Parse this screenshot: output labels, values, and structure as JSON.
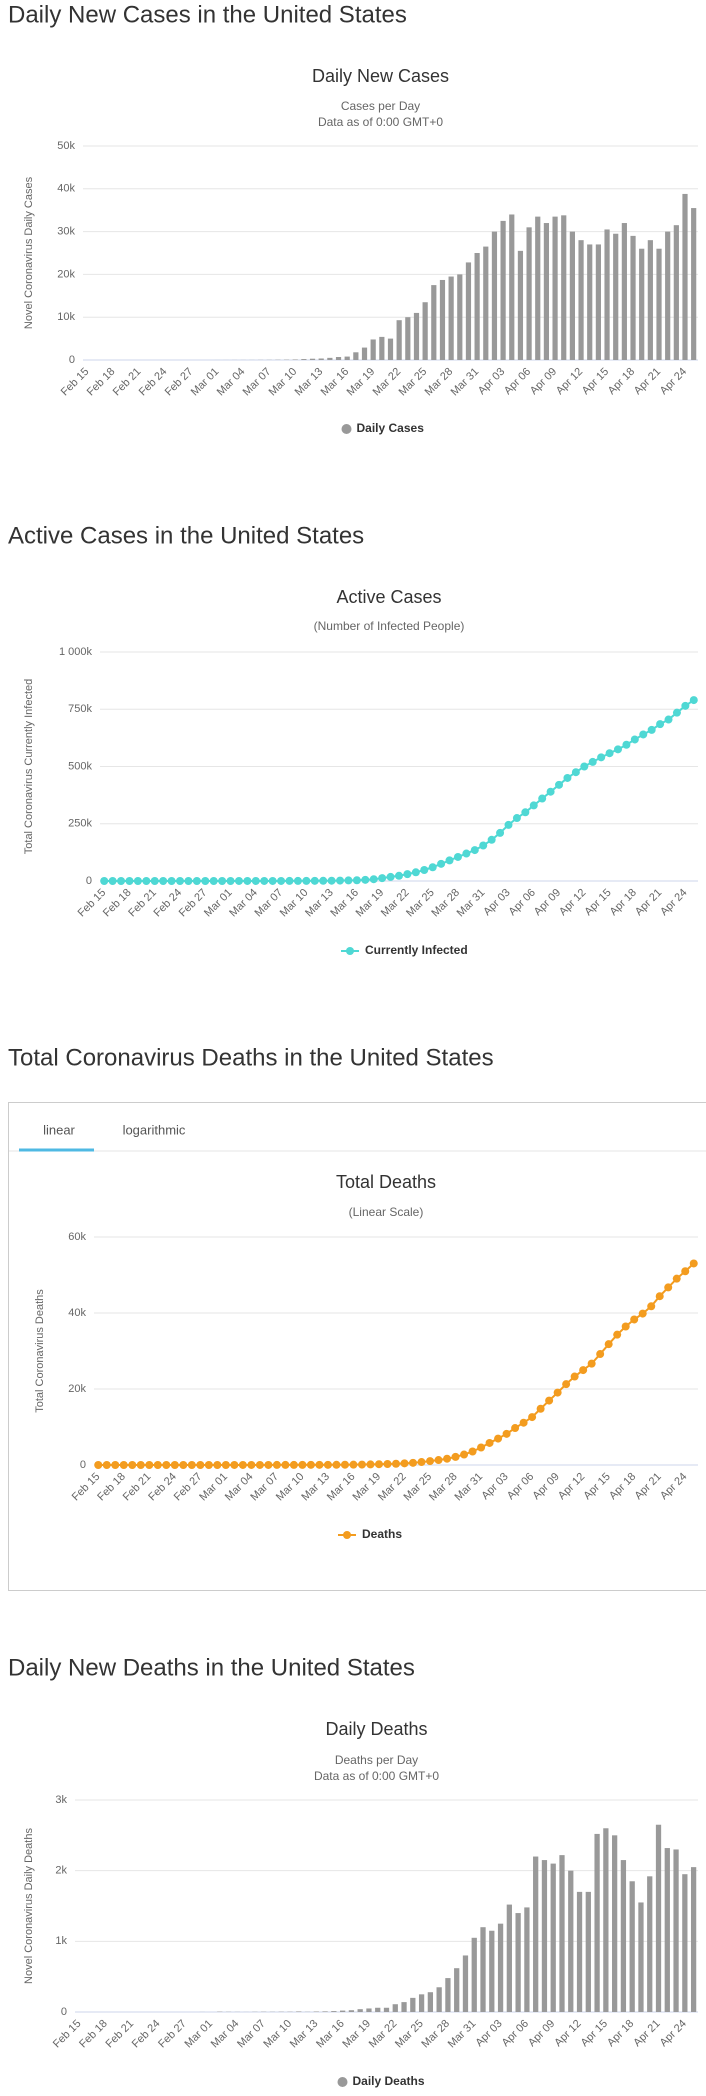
{
  "headings": [
    "Daily New Cases in the United States",
    "Active Cases in the United States",
    "Total Coronavirus Deaths in the United States",
    "Daily New Deaths in the United States"
  ],
  "tabs": [
    "linear",
    "logarithmic"
  ],
  "chart_data": [
    {
      "type": "bar",
      "title": "Daily New Cases",
      "subtitle": [
        "Cases per Day",
        "Data as of 0:00 GMT+0"
      ],
      "y_label": "Novel Coronavirus Daily Cases",
      "categories": [
        "Feb 15",
        null,
        null,
        "Feb 18",
        null,
        null,
        "Feb 21",
        null,
        null,
        "Feb 24",
        null,
        null,
        "Feb 27",
        null,
        null,
        "Mar 01",
        null,
        null,
        "Mar 04",
        null,
        null,
        "Mar 07",
        null,
        null,
        "Mar 10",
        null,
        null,
        "Mar 13",
        null,
        null,
        "Mar 16",
        null,
        null,
        "Mar 19",
        null,
        null,
        "Mar 22",
        null,
        null,
        "Mar 25",
        null,
        null,
        "Mar 28",
        null,
        null,
        "Mar 31",
        null,
        null,
        "Apr 03",
        null,
        null,
        "Apr 06",
        null,
        null,
        "Apr 09",
        null,
        null,
        "Apr 12",
        null,
        null,
        "Apr 15",
        null,
        null,
        "Apr 18",
        null,
        null,
        "Apr 21",
        null,
        null,
        "Apr 24",
        null
      ],
      "series": [
        {
          "name": "Daily Cases",
          "color": "#999999",
          "values": [
            0,
            0,
            0,
            1,
            0,
            0,
            0,
            0,
            0,
            0,
            0,
            0,
            0,
            0,
            0,
            5,
            10,
            15,
            18,
            20,
            30,
            40,
            60,
            80,
            120,
            220,
            300,
            350,
            500,
            700,
            800,
            1800,
            2900,
            4800,
            5400,
            5000,
            9300,
            10000,
            11000,
            13500,
            17500,
            18700,
            19500,
            20000,
            22800,
            25000,
            26500,
            30000,
            32500,
            34000,
            25500,
            31000,
            33500,
            32000,
            33500,
            33800,
            30000,
            28000,
            27000,
            27000,
            30500,
            29500,
            32000,
            29000,
            26000,
            28000,
            26000,
            30000,
            31500,
            38800,
            35500
          ]
        }
      ],
      "ylim": [
        0,
        50000
      ],
      "yticks": [
        0,
        {
          "value": 10000,
          "label": "10k"
        },
        {
          "value": 20000,
          "label": "20k"
        },
        {
          "value": 30000,
          "label": "30k"
        },
        {
          "value": 40000,
          "label": "40k"
        },
        {
          "value": 50000,
          "label": "50k"
        }
      ],
      "grid": true,
      "legend": "bottom"
    },
    {
      "type": "line",
      "title": "Active Cases",
      "subtitle": [
        "(Number of Infected People)"
      ],
      "y_label": "Total Coronavirus Currently Infected",
      "categories": [
        "Feb 15",
        null,
        null,
        "Feb 18",
        null,
        null,
        "Feb 21",
        null,
        null,
        "Feb 24",
        null,
        null,
        "Feb 27",
        null,
        null,
        "Mar 01",
        null,
        null,
        "Mar 04",
        null,
        null,
        "Mar 07",
        null,
        null,
        "Mar 10",
        null,
        null,
        "Mar 13",
        null,
        null,
        "Mar 16",
        null,
        null,
        "Mar 19",
        null,
        null,
        "Mar 22",
        null,
        null,
        "Mar 25",
        null,
        null,
        "Mar 28",
        null,
        null,
        "Mar 31",
        null,
        null,
        "Apr 03",
        null,
        null,
        "Apr 06",
        null,
        null,
        "Apr 09",
        null,
        null,
        "Apr 12",
        null,
        null,
        "Apr 15",
        null,
        null,
        "Apr 18",
        null,
        null,
        "Apr 21",
        null,
        null,
        "Apr 24",
        null
      ],
      "series": [
        {
          "name": "Currently Infected",
          "color": "#4fd8d4",
          "values": [
            12,
            12,
            12,
            12,
            12,
            12,
            13,
            13,
            13,
            13,
            13,
            13,
            13,
            20,
            40,
            55,
            70,
            90,
            110,
            140,
            180,
            230,
            300,
            400,
            520,
            700,
            950,
            1300,
            1800,
            2500,
            3300,
            5000,
            7800,
            12500,
            17800,
            22800,
            30000,
            38000,
            48000,
            60000,
            75000,
            90000,
            105000,
            120000,
            135000,
            155000,
            180000,
            210000,
            245000,
            275000,
            300000,
            330000,
            360000,
            390000,
            420000,
            450000,
            475000,
            500000,
            520000,
            540000,
            558000,
            575000,
            595000,
            618000,
            640000,
            660000,
            685000,
            705000,
            735000,
            765000,
            790000
          ]
        }
      ],
      "ylim": [
        0,
        1000000
      ],
      "yticks": [
        0,
        {
          "value": 250000,
          "label": "250k"
        },
        {
          "value": 500000,
          "label": "500k"
        },
        {
          "value": 750000,
          "label": "750k"
        },
        {
          "value": 1000000,
          "label": "1 000k"
        }
      ],
      "grid": true,
      "legend": "bottom"
    },
    {
      "type": "line",
      "title": "Total Deaths",
      "subtitle": [
        "(Linear Scale)"
      ],
      "y_label": "Total Coronavirus Deaths",
      "categories": [
        "Feb 15",
        null,
        null,
        "Feb 18",
        null,
        null,
        "Feb 21",
        null,
        null,
        "Feb 24",
        null,
        null,
        "Feb 27",
        null,
        null,
        "Mar 01",
        null,
        null,
        "Mar 04",
        null,
        null,
        "Mar 07",
        null,
        null,
        "Mar 10",
        null,
        null,
        "Mar 13",
        null,
        null,
        "Mar 16",
        null,
        null,
        "Mar 19",
        null,
        null,
        "Mar 22",
        null,
        null,
        "Mar 25",
        null,
        null,
        "Mar 28",
        null,
        null,
        "Mar 31",
        null,
        null,
        "Apr 03",
        null,
        null,
        "Apr 06",
        null,
        null,
        "Apr 09",
        null,
        null,
        "Apr 12",
        null,
        null,
        "Apr 15",
        null,
        null,
        "Apr 18",
        null,
        null,
        "Apr 21",
        null,
        null,
        "Apr 24",
        null
      ],
      "series": [
        {
          "name": "Deaths",
          "color": "#f39c1f",
          "values": [
            0,
            0,
            0,
            0,
            0,
            0,
            0,
            0,
            0,
            0,
            0,
            0,
            0,
            0,
            1,
            1,
            6,
            9,
            11,
            12,
            15,
            19,
            22,
            26,
            30,
            38,
            41,
            48,
            57,
            70,
            90,
            115,
            155,
            205,
            265,
            325,
            435,
            575,
            775,
            1025,
            1305,
            1655,
            2135,
            2755,
            3555,
            4605,
            5805,
            6955,
            8205,
            9725,
            11125,
            12605,
            14805,
            16955,
            19055,
            21275,
            23275,
            24975,
            26675,
            29195,
            31795,
            34295,
            36445,
            38295,
            39845,
            41765,
            44415,
            46735,
            49035,
            50985,
            53035
          ]
        }
      ],
      "ylim": [
        0,
        60000
      ],
      "yticks": [
        0,
        {
          "value": 20000,
          "label": "20k"
        },
        {
          "value": 40000,
          "label": "40k"
        },
        {
          "value": 60000,
          "label": "60k"
        }
      ],
      "grid": true,
      "legend": "bottom"
    },
    {
      "type": "bar",
      "title": "Daily Deaths",
      "subtitle": [
        "Deaths per Day",
        "Data as of 0:00 GMT+0"
      ],
      "y_label": "Novel Coronavirus Daily Deaths",
      "categories": [
        "Feb 15",
        null,
        null,
        "Feb 18",
        null,
        null,
        "Feb 21",
        null,
        null,
        "Feb 24",
        null,
        null,
        "Feb 27",
        null,
        null,
        "Mar 01",
        null,
        null,
        "Mar 04",
        null,
        null,
        "Mar 07",
        null,
        null,
        "Mar 10",
        null,
        null,
        "Mar 13",
        null,
        null,
        "Mar 16",
        null,
        null,
        "Mar 19",
        null,
        null,
        "Mar 22",
        null,
        null,
        "Mar 25",
        null,
        null,
        "Mar 28",
        null,
        null,
        "Mar 31",
        null,
        null,
        "Apr 03",
        null,
        null,
        "Apr 06",
        null,
        null,
        "Apr 09",
        null,
        null,
        "Apr 12",
        null,
        null,
        "Apr 15",
        null,
        null,
        "Apr 18",
        null,
        null,
        "Apr 21",
        null,
        null,
        "Apr 24",
        null
      ],
      "series": [
        {
          "name": "Daily Deaths",
          "color": "#999999",
          "values": [
            0,
            0,
            0,
            0,
            0,
            0,
            0,
            0,
            0,
            0,
            0,
            0,
            0,
            0,
            1,
            0,
            5,
            3,
            2,
            1,
            3,
            4,
            3,
            4,
            4,
            8,
            3,
            7,
            9,
            13,
            20,
            25,
            40,
            50,
            60,
            60,
            110,
            140,
            200,
            250,
            280,
            350,
            480,
            620,
            800,
            1050,
            1200,
            1150,
            1250,
            1520,
            1400,
            1480,
            2200,
            2150,
            2100,
            2220,
            2000,
            1700,
            1700,
            2520,
            2600,
            2500,
            2150,
            1850,
            1550,
            1920,
            2650,
            2320,
            2300,
            1950,
            2050
          ]
        }
      ],
      "ylim": [
        0,
        3000
      ],
      "yticks": [
        0,
        {
          "value": 1000,
          "label": "1k"
        },
        {
          "value": 2000,
          "label": "2k"
        },
        {
          "value": 3000,
          "label": "3k"
        }
      ],
      "grid": true,
      "legend": "bottom"
    }
  ]
}
